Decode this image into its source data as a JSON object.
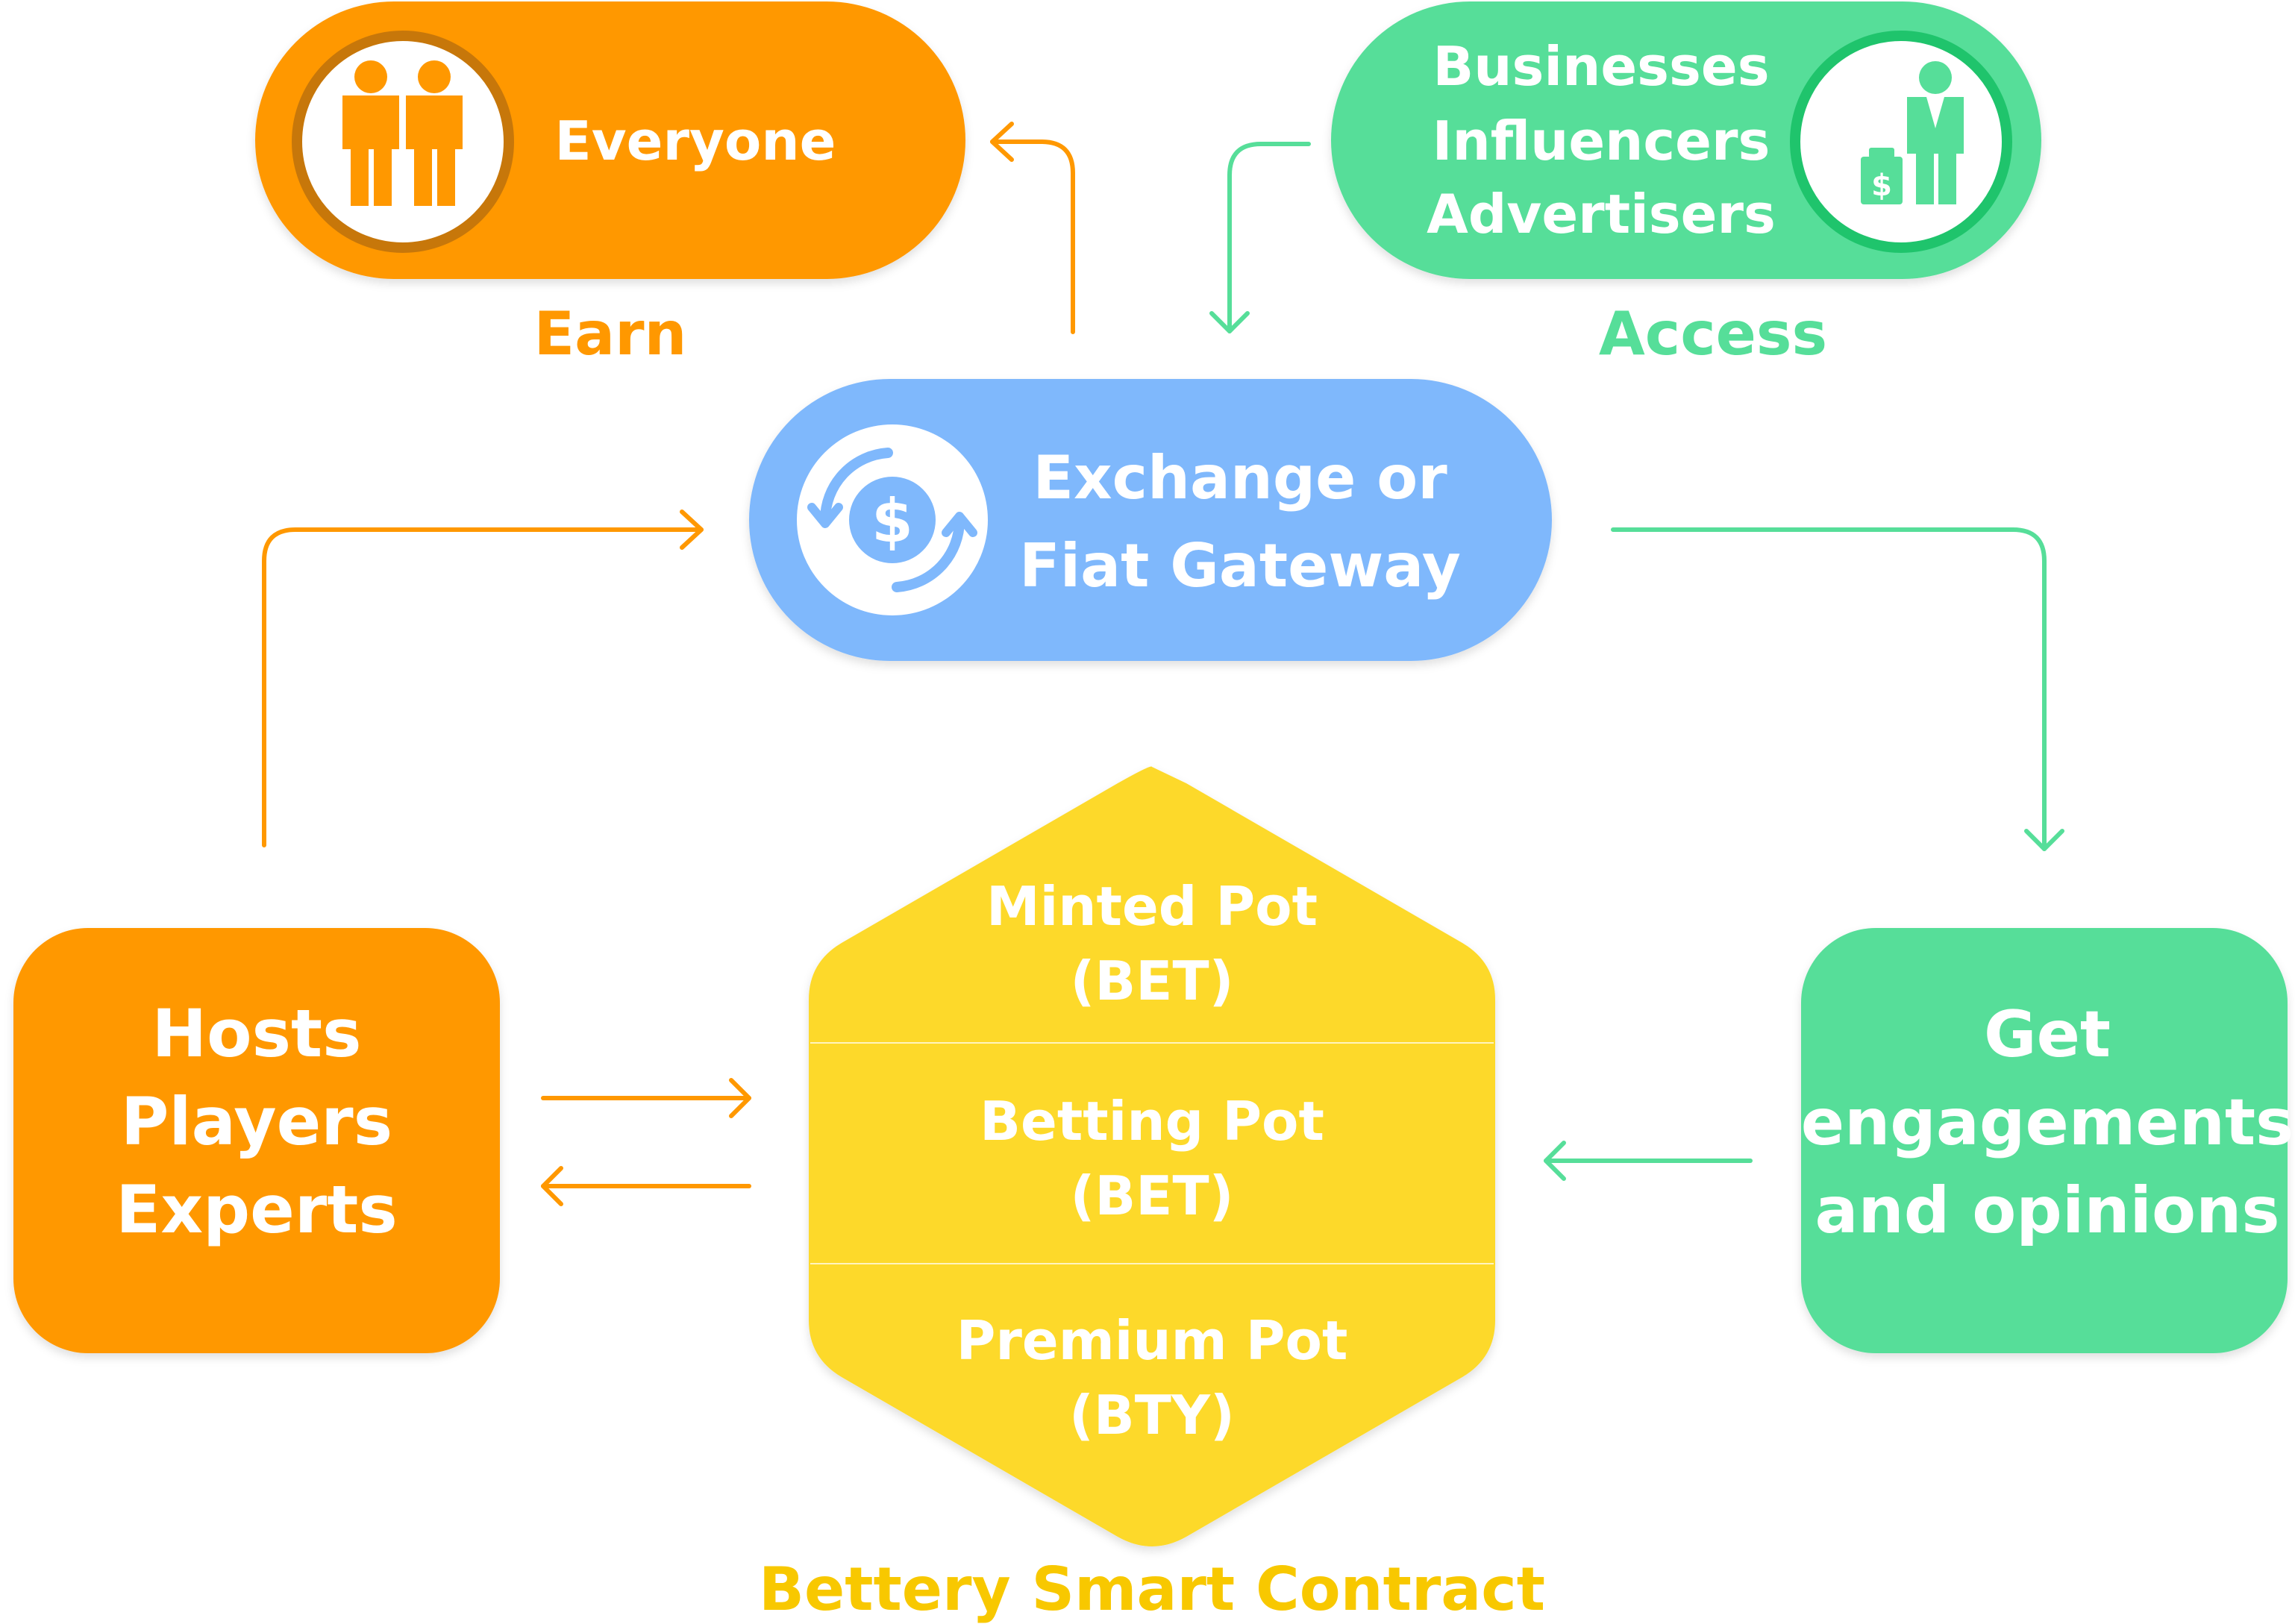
{
  "nodes": {
    "everyone": {
      "label": "Everyone",
      "caption": "Earn"
    },
    "businesses": {
      "lines": [
        "Businesses",
        "Influencers",
        "Advertisers"
      ],
      "caption": "Access"
    },
    "gateway": {
      "lines": [
        "Exchange or",
        "Fiat Gateway"
      ]
    },
    "hosts": {
      "lines": [
        "Hosts",
        "Players",
        "Experts"
      ]
    },
    "engagements": {
      "lines": [
        "Get",
        "engagements",
        "and opinions"
      ]
    },
    "contract": {
      "caption": "Bettery Smart Contract",
      "sections": [
        {
          "name": "Minted Pot",
          "token": "(BET)"
        },
        {
          "name": "Betting Pot",
          "token": "(BET)"
        },
        {
          "name": "Premium Pot",
          "token": "(BTY)"
        }
      ]
    }
  },
  "icons": {
    "everyone": "people-icon",
    "businesses": "businessman-money-icon",
    "gateway": "currency-exchange-icon",
    "money_symbol": "$"
  },
  "colors": {
    "orange": "#FF9800",
    "orange_dark": "#C7770A",
    "green": "#56DE99",
    "green_dark": "#1FC46C",
    "blue": "#7FB8FC",
    "yellow": "#FDD92C",
    "yellow_text": "#F8C800",
    "white": "#FFFFFF"
  }
}
